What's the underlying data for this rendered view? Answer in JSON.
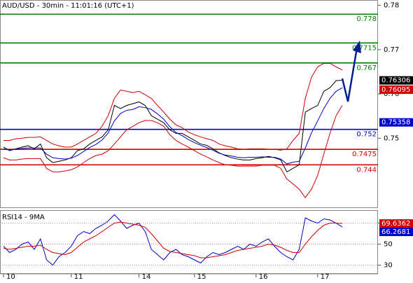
{
  "chart_data": [
    {
      "type": "line",
      "title": "AUD/USD - 30min - 11:01:16 (UTC+1)",
      "categories": [
        "10",
        null,
        null,
        null,
        null,
        null,
        null,
        null,
        null,
        null,
        null,
        "11",
        null,
        null,
        null,
        null,
        null,
        null,
        null,
        null,
        null,
        null,
        "14",
        null,
        null,
        null,
        null,
        null,
        null,
        null,
        null,
        "15",
        null,
        null,
        null,
        null,
        null,
        null,
        null,
        null,
        null,
        "16",
        null,
        null,
        null,
        null,
        null,
        null,
        null,
        null,
        null,
        "17",
        null,
        null,
        null,
        null
      ],
      "series": [
        {
          "color": "#000000",
          "values": [
            0.748,
            0.7472,
            0.7476,
            0.748,
            0.7483,
            0.7476,
            0.7487,
            0.7456,
            0.7445,
            0.7448,
            0.7451,
            0.7456,
            0.7472,
            0.7476,
            0.7487,
            0.7495,
            0.7503,
            0.7519,
            0.7574,
            0.7567,
            0.7574,
            0.7578,
            0.7582,
            0.7574,
            0.7551,
            0.7543,
            0.7535,
            0.7519,
            0.7511,
            0.7511,
            0.7503,
            0.7495,
            0.7487,
            0.7484,
            0.7476,
            0.7467,
            0.7461,
            0.7456,
            0.7453,
            0.7451,
            0.7451,
            0.7454,
            0.7456,
            0.7459,
            0.7456,
            0.7451,
            0.7424,
            0.7432,
            0.744,
            0.7559,
            0.7567,
            0.7574,
            0.7606,
            0.7614,
            0.763,
            0.7631
          ]
        },
        {
          "color": "#d00000",
          "values": [
            0.7495,
            0.7495,
            0.7499,
            0.75,
            0.7502,
            0.7502,
            0.7503,
            0.7495,
            0.7487,
            0.7483,
            0.748,
            0.748,
            0.7487,
            0.7495,
            0.7503,
            0.7511,
            0.7527,
            0.7551,
            0.759,
            0.7609,
            0.7606,
            0.7603,
            0.7606,
            0.7598,
            0.759,
            0.7574,
            0.7559,
            0.7543,
            0.753,
            0.7524,
            0.7514,
            0.7508,
            0.7503,
            0.7499,
            0.7495,
            0.7487,
            0.7483,
            0.748,
            0.7476,
            0.7475,
            0.7476,
            0.7476,
            0.7476,
            0.7475,
            0.7475,
            0.7473,
            0.7476,
            0.7495,
            0.7511,
            0.759,
            0.7638,
            0.7661,
            0.7669,
            0.7669,
            0.7661,
            0.7654
          ]
        },
        {
          "color": "#d00000",
          "values": [
            0.7456,
            0.7451,
            0.7451,
            0.7453,
            0.7454,
            0.7454,
            0.7454,
            0.7432,
            0.7424,
            0.7424,
            0.7426,
            0.7429,
            0.7435,
            0.7445,
            0.7454,
            0.7461,
            0.7464,
            0.7472,
            0.7487,
            0.7503,
            0.7519,
            0.7527,
            0.7535,
            0.754,
            0.754,
            0.7535,
            0.7527,
            0.7508,
            0.7495,
            0.7487,
            0.748,
            0.7472,
            0.7464,
            0.7458,
            0.7451,
            0.7445,
            0.744,
            0.7439,
            0.7437,
            0.7437,
            0.7437,
            0.7437,
            0.7439,
            0.7439,
            0.7439,
            0.7432,
            0.7408,
            0.7397,
            0.7385,
            0.7366,
            0.7385,
            0.7416,
            0.7464,
            0.7511,
            0.7551,
            0.7574
          ]
        },
        {
          "color": "#0000cc",
          "values": [
            0.7476,
            0.7473,
            0.7475,
            0.7477,
            0.7478,
            0.7478,
            0.7478,
            0.7464,
            0.7456,
            0.7454,
            0.7453,
            0.7455,
            0.7461,
            0.747,
            0.7479,
            0.7486,
            0.7496,
            0.7512,
            0.7539,
            0.7556,
            0.7563,
            0.7565,
            0.7571,
            0.7569,
            0.7565,
            0.7555,
            0.7543,
            0.7526,
            0.7513,
            0.7506,
            0.7497,
            0.749,
            0.7484,
            0.7479,
            0.7473,
            0.7466,
            0.7462,
            0.746,
            0.7457,
            0.7456,
            0.7457,
            0.7457,
            0.7458,
            0.7457,
            0.7457,
            0.7453,
            0.7442,
            0.7446,
            0.7448,
            0.7478,
            0.7512,
            0.7539,
            0.7567,
            0.759,
            0.7606,
            0.7614
          ]
        }
      ],
      "levels": [
        {
          "value": 0.778,
          "color": "#008000"
        },
        {
          "value": 0.7715,
          "color": "#008000"
        },
        {
          "value": 0.767,
          "color": "#008000"
        },
        {
          "value": 0.752,
          "color": "#0000cc"
        },
        {
          "value": 0.7475,
          "color": "#d00000"
        },
        {
          "value": 0.744,
          "color": "#d00000"
        }
      ],
      "price_tags": [
        {
          "value": 0.76306,
          "color": "#000000"
        },
        {
          "value": 0.76095,
          "color": "#d00000"
        },
        {
          "value": 0.75358,
          "color": "#0000cc"
        }
      ],
      "ylim": [
        0.7344,
        0.7812
      ],
      "yticks": [
        0.75,
        0.76,
        0.77,
        0.78
      ]
    },
    {
      "type": "line",
      "title": "RSI14 - 9MA",
      "series": [
        {
          "color": "#0000cc",
          "values": [
            48,
            42,
            45,
            50,
            52,
            45,
            55,
            35,
            30,
            38,
            42,
            48,
            58,
            62,
            60,
            65,
            68,
            72,
            78,
            72,
            65,
            68,
            70,
            62,
            45,
            40,
            35,
            42,
            45,
            40,
            38,
            35,
            32,
            38,
            42,
            40,
            42,
            45,
            48,
            45,
            50,
            48,
            52,
            55,
            48,
            42,
            38,
            35,
            45,
            75,
            72,
            70,
            74,
            73,
            70,
            66.2681
          ]
        },
        {
          "color": "#d00000",
          "values": [
            46,
            45,
            46,
            47,
            48,
            48,
            49,
            45,
            42,
            41,
            40,
            42,
            47,
            52,
            55,
            58,
            62,
            66,
            70,
            71,
            70,
            69,
            68,
            66,
            60,
            53,
            46,
            43,
            42,
            41,
            40,
            39,
            37,
            37,
            38,
            39,
            40,
            42,
            44,
            45,
            46,
            47,
            48,
            50,
            49,
            47,
            44,
            42,
            42,
            50,
            57,
            63,
            68,
            70,
            70,
            69.6362
          ]
        }
      ],
      "price_tags": [
        {
          "value": 69.6362,
          "color": "#d00000"
        },
        {
          "value": 66.2681,
          "color": "#0000cc"
        }
      ],
      "ylim": [
        21,
        81
      ],
      "yticks": [
        30,
        50,
        70
      ]
    }
  ]
}
